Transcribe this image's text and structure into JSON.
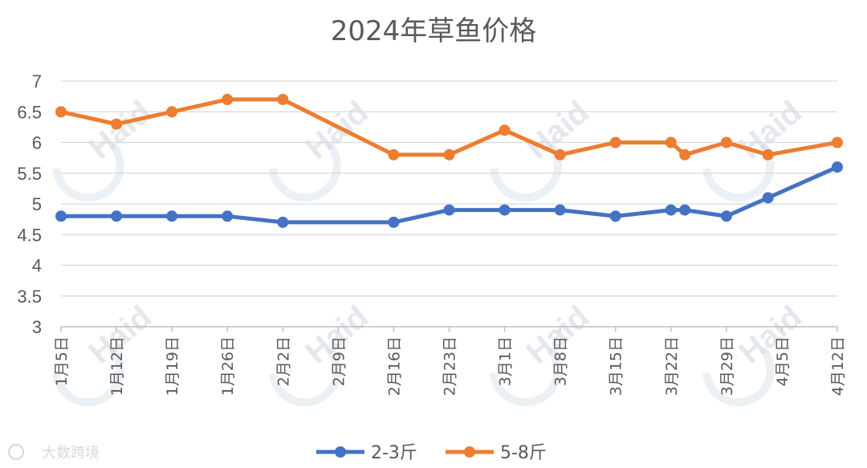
{
  "chart_data": {
    "type": "line",
    "title": "2024年草鱼价格",
    "x": [
      "1月5日",
      "1月12日",
      "1月19日",
      "1月26日",
      "2月2日",
      "2月9日",
      "2月16日",
      "2月23日",
      "3月1日",
      "3月8日",
      "3月15日",
      "3月22日",
      "3月29日",
      "4月5日",
      "4月12日"
    ],
    "y_ticks": [
      "3",
      "3.5",
      "4",
      "4.5",
      "5",
      "5.5",
      "6",
      "6.5",
      "7"
    ],
    "ylim": [
      3,
      7
    ],
    "grid": true,
    "legend_position": "bottom",
    "series": [
      {
        "name": "2-3斤",
        "color": "#4472c4",
        "points": [
          [
            0,
            4.8
          ],
          [
            1,
            4.8
          ],
          [
            2,
            4.8
          ],
          [
            3,
            4.8
          ],
          [
            4,
            4.7
          ],
          [
            6,
            4.7
          ],
          [
            7,
            4.9
          ],
          [
            8,
            4.9
          ],
          [
            9,
            4.9
          ],
          [
            10,
            4.8
          ],
          [
            11,
            4.9
          ],
          [
            11.25,
            4.9
          ],
          [
            12,
            4.8
          ],
          [
            12.75,
            5.1
          ],
          [
            14,
            5.6
          ]
        ]
      },
      {
        "name": "5-8斤",
        "color": "#ed7d31",
        "points": [
          [
            0,
            6.5
          ],
          [
            1,
            6.3
          ],
          [
            2,
            6.5
          ],
          [
            3,
            6.7
          ],
          [
            4,
            6.7
          ],
          [
            6,
            5.8
          ],
          [
            7,
            5.8
          ],
          [
            8,
            6.2
          ],
          [
            9,
            5.8
          ],
          [
            10,
            6.0
          ],
          [
            11,
            6.0
          ],
          [
            11.25,
            5.8
          ],
          [
            12,
            6.0
          ],
          [
            12.75,
            5.8
          ],
          [
            14,
            6.0
          ]
        ]
      }
    ]
  },
  "watermark": {
    "text": "Haid"
  },
  "source_label": "大数跨境"
}
